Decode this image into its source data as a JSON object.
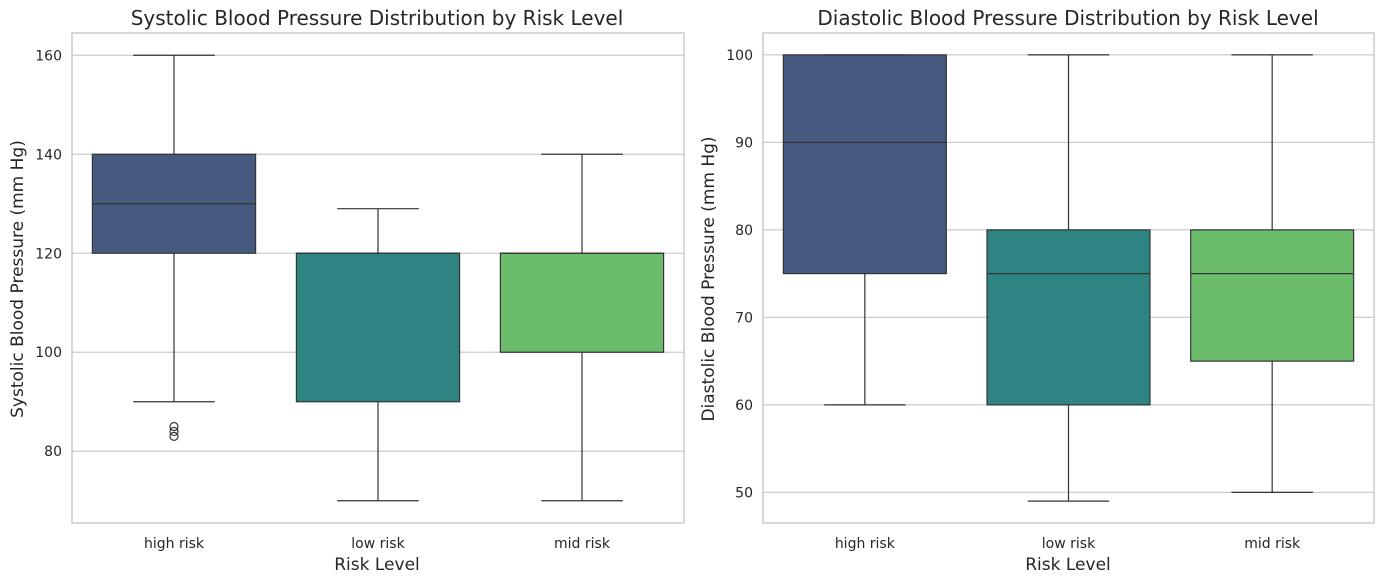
{
  "colors": {
    "high risk": "#46597f",
    "low risk": "#2e8480",
    "mid risk": "#6bbd6c",
    "grid": "#cccccc",
    "line": "#333333"
  },
  "chart_data": [
    {
      "type": "box",
      "title": "Systolic Blood Pressure Distribution by Risk Level",
      "xlabel": "Risk Level",
      "ylabel": "Systolic Blood Pressure (mm Hg)",
      "categories": [
        "high risk",
        "low risk",
        "mid risk"
      ],
      "ylim": [
        65.5,
        164.5
      ],
      "yticks": [
        80,
        100,
        120,
        140,
        160
      ],
      "grid": "y",
      "boxes": [
        {
          "category": "high risk",
          "whislo": 90,
          "q1": 120,
          "med": 130,
          "q3": 140,
          "whishi": 160,
          "fliers": [
            85,
            84,
            83
          ]
        },
        {
          "category": "low risk",
          "whislo": 70,
          "q1": 90,
          "med": 120,
          "q3": 120,
          "whishi": 129,
          "fliers": []
        },
        {
          "category": "mid risk",
          "whislo": 70,
          "q1": 100,
          "med": 120,
          "q3": 120,
          "whishi": 140,
          "fliers": []
        }
      ]
    },
    {
      "type": "box",
      "title": "Diastolic Blood Pressure Distribution by Risk Level",
      "xlabel": "Risk Level",
      "ylabel": "Diastolic Blood Pressure (mm Hg)",
      "categories": [
        "high risk",
        "low risk",
        "mid risk"
      ],
      "ylim": [
        46.5,
        102.5
      ],
      "yticks": [
        50,
        60,
        70,
        80,
        90,
        100
      ],
      "grid": "y",
      "boxes": [
        {
          "category": "high risk",
          "whislo": 60,
          "q1": 75,
          "med": 90,
          "q3": 100,
          "whishi": 100,
          "fliers": []
        },
        {
          "category": "low risk",
          "whislo": 49,
          "q1": 60,
          "med": 75,
          "q3": 80,
          "whishi": 100,
          "fliers": []
        },
        {
          "category": "mid risk",
          "whislo": 50,
          "q1": 65,
          "med": 75,
          "q3": 80,
          "whishi": 100,
          "fliers": []
        }
      ]
    }
  ]
}
